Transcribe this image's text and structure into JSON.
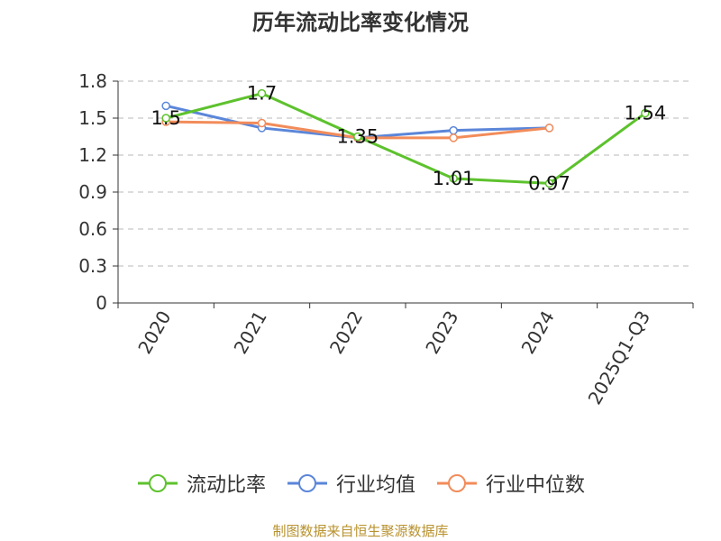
{
  "chart_data": {
    "type": "line",
    "title": "历年流动比率变化情况",
    "categories": [
      "2020",
      "2021",
      "2022",
      "2023",
      "2024",
      "2025Q1-Q3"
    ],
    "series": [
      {
        "name": "流动比率",
        "color": "#5dc22d",
        "values": [
          1.5,
          1.7,
          1.35,
          1.01,
          0.97,
          1.54
        ],
        "labels": [
          "1.5",
          "1.7",
          "1.35",
          "1.01",
          "0.97",
          "1.54"
        ]
      },
      {
        "name": "行业均值",
        "color": "#5b86d9",
        "values": [
          1.6,
          1.42,
          1.34,
          1.4,
          1.42,
          null
        ]
      },
      {
        "name": "行业中位数",
        "color": "#f28c5a",
        "values": [
          1.47,
          1.46,
          1.34,
          1.34,
          1.42,
          null
        ]
      }
    ],
    "yticks": [
      "0",
      "0.3",
      "0.6",
      "0.9",
      "1.2",
      "1.5",
      "1.8"
    ],
    "ylim": [
      0,
      1.8
    ],
    "grid": true,
    "legend_position": "bottom"
  },
  "source": "制图数据来自恒生聚源数据库"
}
